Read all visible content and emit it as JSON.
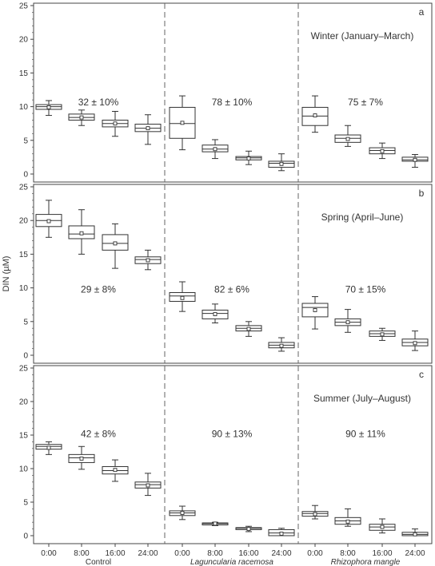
{
  "chart_data": {
    "type": "box",
    "ylabel": "DIN (µM)",
    "ylim": [
      0,
      25
    ],
    "yticks": [
      "0",
      "5",
      "10",
      "15",
      "20",
      "25"
    ],
    "categories": [
      "0:00",
      "8:00",
      "16:00",
      "24:00",
      "0:00",
      "8:00",
      "16:00",
      "24:00",
      "0:00",
      "8:00",
      "16:00",
      "24:00"
    ],
    "groups": [
      {
        "label": "Control",
        "italic": false
      },
      {
        "label": "Laguncularia racemosa",
        "italic": true
      },
      {
        "label": "Rhizophora mangle",
        "italic": true
      }
    ],
    "panels": [
      {
        "letter": "a",
        "season": "Winter (January–March)",
        "percents": [
          "32 ± 10%",
          "78 ± 10%",
          "75 ± 7%"
        ],
        "boxes": [
          {
            "min": 8.7,
            "q1": 9.6,
            "median": 10.0,
            "q3": 10.3,
            "max": 10.9,
            "mean": 9.9
          },
          {
            "min": 7.2,
            "q1": 8.0,
            "median": 8.4,
            "q3": 8.9,
            "max": 9.5,
            "mean": 8.4
          },
          {
            "min": 5.6,
            "q1": 7.0,
            "median": 7.5,
            "q3": 8.0,
            "max": 9.3,
            "mean": 7.5
          },
          {
            "min": 4.4,
            "q1": 6.3,
            "median": 6.8,
            "q3": 7.4,
            "max": 8.8,
            "mean": 6.8
          },
          {
            "min": 3.6,
            "q1": 5.3,
            "median": 7.5,
            "q3": 9.9,
            "max": 11.6,
            "mean": 7.6
          },
          {
            "min": 2.3,
            "q1": 3.3,
            "median": 3.7,
            "q3": 4.3,
            "max": 5.1,
            "mean": 3.7
          },
          {
            "min": 1.4,
            "q1": 2.1,
            "median": 2.4,
            "q3": 2.6,
            "max": 3.4,
            "mean": 2.3
          },
          {
            "min": 0.5,
            "q1": 1.0,
            "median": 1.6,
            "q3": 1.9,
            "max": 3.0,
            "mean": 1.5
          },
          {
            "min": 6.2,
            "q1": 7.2,
            "median": 8.6,
            "q3": 9.9,
            "max": 11.6,
            "mean": 8.7
          },
          {
            "min": 4.1,
            "q1": 4.7,
            "median": 5.3,
            "q3": 5.8,
            "max": 7.2,
            "mean": 5.2
          },
          {
            "min": 2.3,
            "q1": 3.0,
            "median": 3.5,
            "q3": 3.9,
            "max": 4.6,
            "mean": 3.4
          },
          {
            "min": 1.0,
            "q1": 1.9,
            "median": 2.1,
            "q3": 2.5,
            "max": 2.9,
            "mean": 2.1
          }
        ]
      },
      {
        "letter": "b",
        "season": "Spring (April–June)",
        "percents": [
          "29 ± 8%",
          "82 ± 6%",
          "70 ± 15%"
        ],
        "boxes": [
          {
            "min": 17.5,
            "q1": 19.1,
            "median": 20.0,
            "q3": 20.9,
            "max": 23.0,
            "mean": 19.9
          },
          {
            "min": 15.0,
            "q1": 17.3,
            "median": 18.0,
            "q3": 19.2,
            "max": 21.6,
            "mean": 18.1
          },
          {
            "min": 12.9,
            "q1": 15.6,
            "median": 16.6,
            "q3": 17.9,
            "max": 19.5,
            "mean": 16.6
          },
          {
            "min": 12.7,
            "q1": 13.6,
            "median": 14.2,
            "q3": 14.6,
            "max": 15.6,
            "mean": 14.1
          },
          {
            "min": 6.5,
            "q1": 8.0,
            "median": 8.8,
            "q3": 9.3,
            "max": 10.9,
            "mean": 8.5
          },
          {
            "min": 4.8,
            "q1": 5.4,
            "median": 6.2,
            "q3": 6.7,
            "max": 7.6,
            "mean": 6.1
          },
          {
            "min": 2.8,
            "q1": 3.6,
            "median": 4.0,
            "q3": 4.4,
            "max": 5.0,
            "mean": 3.9
          },
          {
            "min": 0.6,
            "q1": 1.1,
            "median": 1.5,
            "q3": 1.9,
            "max": 2.6,
            "mean": 1.4
          },
          {
            "min": 3.9,
            "q1": 5.7,
            "median": 7.1,
            "q3": 7.7,
            "max": 8.7,
            "mean": 6.7
          },
          {
            "min": 3.4,
            "q1": 4.4,
            "median": 4.9,
            "q3": 5.4,
            "max": 6.8,
            "mean": 4.9
          },
          {
            "min": 2.2,
            "q1": 2.8,
            "median": 3.2,
            "q3": 3.6,
            "max": 4.0,
            "mean": 3.1
          },
          {
            "min": 0.7,
            "q1": 1.4,
            "median": 1.9,
            "q3": 2.4,
            "max": 3.6,
            "mean": 1.8
          }
        ]
      },
      {
        "letter": "c",
        "season": "Summer (July–August)",
        "percents": [
          "42 ± 8%",
          "90 ± 13%",
          "90 ± 11%"
        ],
        "boxes": [
          {
            "min": 12.1,
            "q1": 12.9,
            "median": 13.3,
            "q3": 13.6,
            "max": 14.0,
            "mean": 13.1
          },
          {
            "min": 9.9,
            "q1": 10.9,
            "median": 11.6,
            "q3": 12.1,
            "max": 13.3,
            "mean": 11.5
          },
          {
            "min": 8.1,
            "q1": 9.2,
            "median": 9.7,
            "q3": 10.3,
            "max": 11.3,
            "mean": 9.8
          },
          {
            "min": 6.0,
            "q1": 7.1,
            "median": 7.6,
            "q3": 8.0,
            "max": 9.3,
            "mean": 7.5
          },
          {
            "min": 2.4,
            "q1": 3.0,
            "median": 3.4,
            "q3": 3.7,
            "max": 4.4,
            "mean": 3.4
          },
          {
            "min": 1.5,
            "q1": 1.6,
            "median": 1.8,
            "q3": 1.9,
            "max": 2.0,
            "mean": 1.8
          },
          {
            "min": 0.6,
            "q1": 0.9,
            "median": 1.1,
            "q3": 1.2,
            "max": 1.4,
            "mean": 1.0
          },
          {
            "min": 0.0,
            "q1": 0.0,
            "median": 0.4,
            "q3": 0.9,
            "max": 1.1,
            "mean": 0.3
          },
          {
            "min": 2.5,
            "q1": 2.9,
            "median": 3.3,
            "q3": 3.6,
            "max": 4.5,
            "mean": 3.2
          },
          {
            "min": 1.4,
            "q1": 1.7,
            "median": 2.2,
            "q3": 2.7,
            "max": 4.0,
            "mean": 2.1
          },
          {
            "min": 0.4,
            "q1": 0.8,
            "median": 1.3,
            "q3": 1.7,
            "max": 2.5,
            "mean": 1.3
          },
          {
            "min": 0.0,
            "q1": 0.0,
            "median": 0.2,
            "q3": 0.5,
            "max": 1.0,
            "mean": 0.2
          }
        ]
      }
    ]
  }
}
